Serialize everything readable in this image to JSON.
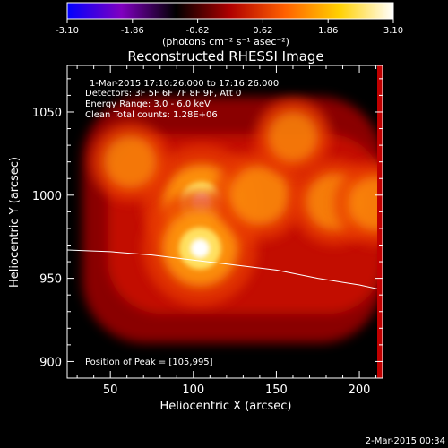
{
  "colorbar": {
    "ticks": [
      "-3.10",
      "-1.86",
      "-0.62",
      "0.62",
      "1.86",
      "3.10"
    ],
    "units_label": "(photons cm⁻² s⁻¹ asec⁻²)",
    "range": [
      -3.1,
      3.1
    ],
    "colormap": [
      "#0000ff",
      "#8000c0",
      "#000000",
      "#b00000",
      "#ff6000",
      "#ffd000",
      "#ffffff"
    ]
  },
  "chart_data": {
    "type": "heatmap",
    "title": "Reconstructed RHESSI Image",
    "xlabel": "Heliocentric X (arcsec)",
    "ylabel": "Heliocentric Y (arcsec)",
    "xlim": [
      24,
      214
    ],
    "ylim": [
      890,
      1078
    ],
    "x_ticks": [
      50,
      100,
      150,
      200
    ],
    "y_ticks": [
      900,
      950,
      1000,
      1050
    ],
    "sources": [
      {
        "x": 105,
        "y": 995,
        "intensity": 1.0
      },
      {
        "x": 104,
        "y": 968,
        "intensity": 0.95
      },
      {
        "x": 140,
        "y": 1000,
        "intensity": 0.6
      },
      {
        "x": 185,
        "y": 996,
        "intensity": 0.55
      },
      {
        "x": 210,
        "y": 995,
        "intensity": 0.5
      },
      {
        "x": 62,
        "y": 1020,
        "intensity": 0.45
      },
      {
        "x": 160,
        "y": 1035,
        "intensity": 0.4
      }
    ],
    "limb": [
      [
        24,
        967
      ],
      [
        50,
        966
      ],
      [
        75,
        964
      ],
      [
        100,
        961
      ],
      [
        125,
        958
      ],
      [
        150,
        955
      ],
      [
        175,
        950
      ],
      [
        200,
        946
      ],
      [
        214,
        943
      ]
    ]
  },
  "annotations": {
    "time_range": "1-Mar-2015 17:10:26.000 to 17:16:26.000",
    "detectors": "Detectors: 3F 5F 6F 7F 8F 9F, Att 0",
    "energy": "Energy Range: 3.0 - 6.0 keV",
    "clean": "Clean    Total counts: 1.28E+06",
    "peak": "Position of Peak = [105,995]"
  },
  "footer": {
    "timestamp": "2-Mar-2015 00:34"
  }
}
